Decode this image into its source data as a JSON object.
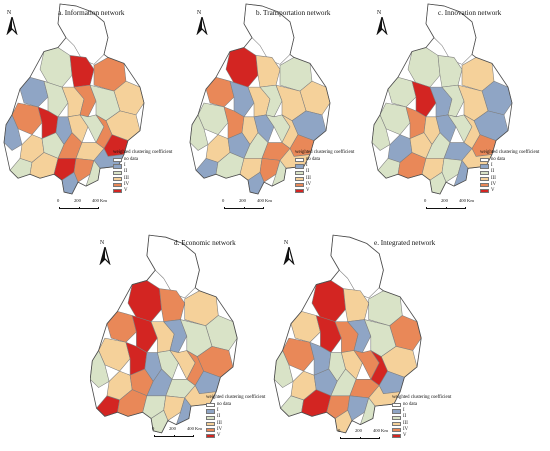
{
  "figure": {
    "panels": [
      {
        "title": "a. Information network",
        "legend_title": "weighted clustering coefficient",
        "legend_items": [
          "no data",
          "I",
          "II",
          "III",
          "IV",
          "V"
        ],
        "scale_labels": [
          "0",
          "200",
          "400 Km"
        ],
        "region_classes": [
          "no data",
          "II",
          "V",
          "IV",
          "III",
          "I",
          "II",
          "III",
          "IV",
          "II",
          "III",
          "IV",
          "V",
          "I",
          "III",
          "II",
          "IV",
          "V",
          "I",
          "III",
          "II",
          "IV",
          "III",
          "I",
          "II",
          "III",
          "V",
          "IV",
          "II",
          "I"
        ]
      },
      {
        "title": "b. Transportation network",
        "legend_title": "weighted clustering coefficient",
        "legend_items": [
          "no data",
          "I",
          "II",
          "III",
          "IV",
          "V"
        ],
        "scale_labels": [
          "0",
          "200",
          "400 Km"
        ],
        "region_classes": [
          "no data",
          "V",
          "III",
          "II",
          "III",
          "IV",
          "I",
          "III",
          "II",
          "III",
          "I",
          "II",
          "IV",
          "III",
          "I",
          "II",
          "III",
          "IV",
          "II",
          "III",
          "I",
          "II",
          "IV",
          "III",
          "I",
          "II",
          "III",
          "IV",
          "II",
          "I"
        ]
      },
      {
        "title": "c. Innovation network",
        "legend_title": "weighted clustering coefficient",
        "legend_items": [
          "no data",
          "I",
          "II",
          "III",
          "IV",
          "V"
        ],
        "scale_labels": [
          "0",
          "200",
          "400 Km"
        ],
        "region_classes": [
          "no data",
          "II",
          "II",
          "III",
          "I",
          "II",
          "V",
          "I",
          "II",
          "III",
          "I",
          "II",
          "IV",
          "III",
          "I",
          "II",
          "III",
          "IV",
          "II",
          "I",
          "III",
          "II",
          "I",
          "III",
          "II",
          "IV",
          "III",
          "II",
          "I",
          "II"
        ]
      },
      {
        "title": "d. Economic network",
        "legend_title": "weighted clustering coefficient",
        "legend_items": [
          "no data",
          "I",
          "II",
          "III",
          "IV",
          "V"
        ],
        "scale_labels": [
          "0",
          "200",
          "400 Km"
        ],
        "region_classes": [
          "no data",
          "V",
          "IV",
          "III",
          "II",
          "IV",
          "V",
          "III",
          "I",
          "II",
          "IV",
          "III",
          "V",
          "I",
          "II",
          "III",
          "IV",
          "I",
          "II",
          "III",
          "IV",
          "I",
          "II",
          "III",
          "V",
          "IV",
          "II",
          "III",
          "I",
          "II"
        ]
      },
      {
        "title": "e. Integrated network",
        "legend_title": "weighted clustering coefficient",
        "legend_items": [
          "no data",
          "I",
          "II",
          "III",
          "IV",
          "V"
        ],
        "scale_labels": [
          "0",
          "200",
          "400 Km"
        ],
        "region_classes": [
          "no data",
          "V",
          "III",
          "II",
          "IV",
          "III",
          "V",
          "IV",
          "I",
          "II",
          "III",
          "IV",
          "I",
          "II",
          "III",
          "IV",
          "V",
          "I",
          "II",
          "III",
          "I",
          "II",
          "IV",
          "III",
          "II",
          "V",
          "IV",
          "I",
          "II",
          "III"
        ]
      }
    ],
    "north_label": "N",
    "class_colors": {
      "no data": "#ffffff",
      "I": "#8fa5c5",
      "II": "#d9e3c7",
      "III": "#f5d19a",
      "IV": "#e98858",
      "V": "#d32522"
    },
    "outline_color": "#4d4d4d",
    "inner_border_color": "#7e7e7e"
  }
}
